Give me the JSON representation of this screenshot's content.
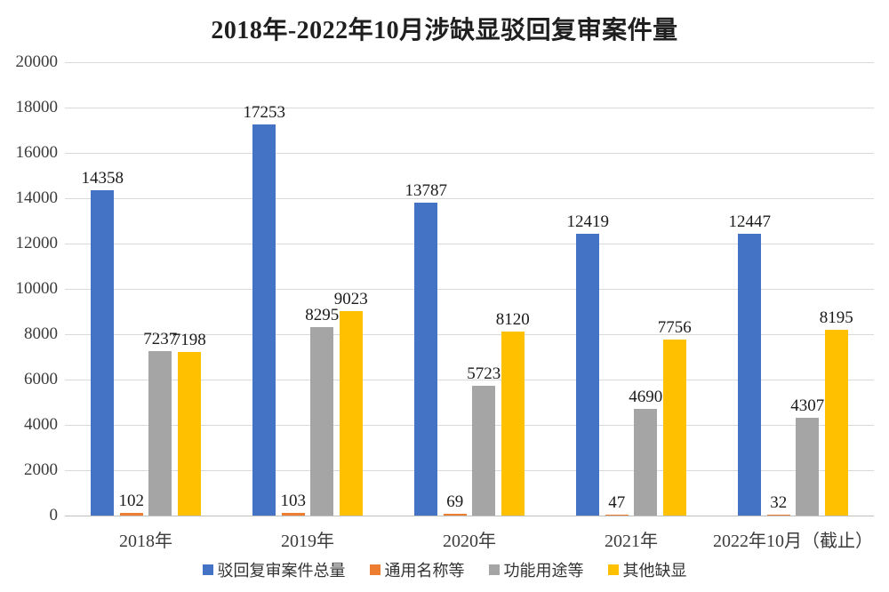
{
  "chart_data": {
    "type": "bar",
    "title": "2018年-2022年10月涉缺显驳回复审案件量",
    "categories": [
      "2018年",
      "2019年",
      "2020年",
      "2021年",
      "2022年10月（截止）"
    ],
    "series": [
      {
        "name": "驳回复审案件总量",
        "color": "#4472C4",
        "values": [
          14358,
          17253,
          13787,
          12419,
          12447
        ]
      },
      {
        "name": "通用名称等",
        "color": "#ED7D31",
        "values": [
          102,
          103,
          69,
          47,
          32
        ]
      },
      {
        "name": "功能用途等",
        "color": "#A5A5A5",
        "values": [
          7237,
          8295,
          5723,
          4690,
          4307
        ]
      },
      {
        "name": "其他缺显",
        "color": "#FFC000",
        "values": [
          7198,
          9023,
          8120,
          7756,
          8195
        ]
      }
    ],
    "ylim": [
      0,
      20000
    ],
    "ytick_step": 2000,
    "grid": true,
    "data_labels": true,
    "legend_position": "bottom",
    "colors": {
      "gridline": "#D9D9D9",
      "axis_line": "#BFBFBF",
      "axis_text": "#3B3B3B",
      "label_text": "#1A1A1A",
      "background": "#FFFFFF"
    }
  }
}
